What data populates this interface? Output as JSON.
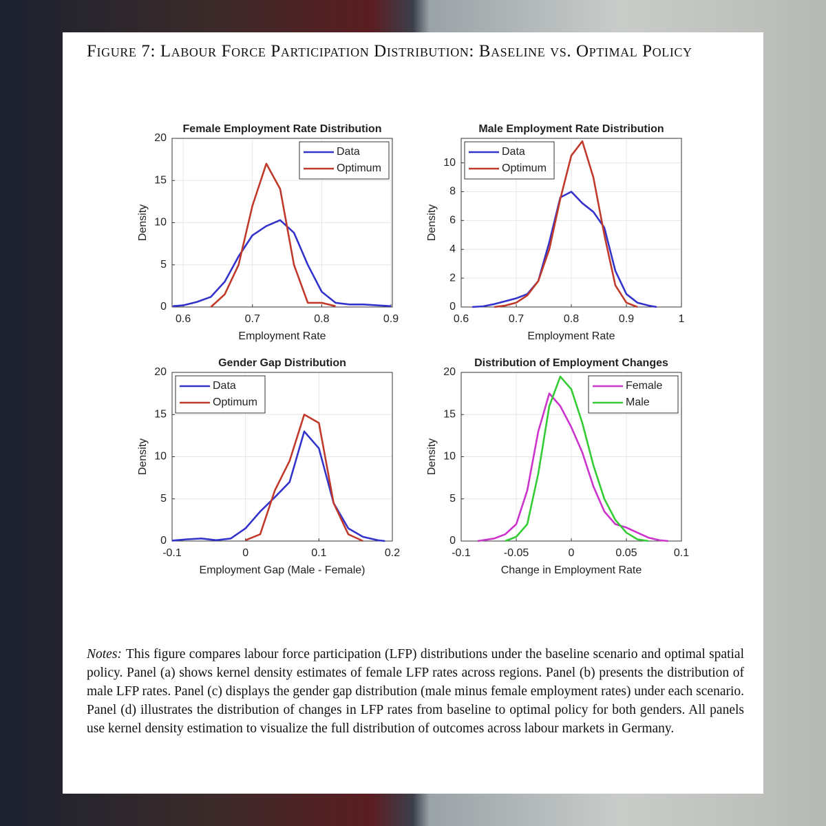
{
  "figure": {
    "label": "Figure 7:",
    "title": "Labour Force Participation Distribution: Baseline vs. Optimal Policy"
  },
  "notes": {
    "label": "Notes:",
    "text": "This figure compares labour force participation (LFP) distributions under the baseline scenario and optimal spatial policy. Panel (a) shows kernel density estimates of female LFP rates across regions. Panel (b) presents the distribution of male LFP rates. Panel (c) displays the gender gap distribution (male minus female employment rates) under each scenario. Panel (d) illustrates the distribution of changes in LFP rates from baseline to optimal policy for both genders. All panels use kernel density estimation to visualize the full distribution of outcomes across labour markets in Germany."
  },
  "chart_data": [
    {
      "type": "line",
      "title": "Female Employment Rate Distribution",
      "xlabel": "Employment Rate",
      "ylabel": "Density",
      "x": [
        0.585,
        0.6,
        0.62,
        0.64,
        0.66,
        0.68,
        0.7,
        0.72,
        0.74,
        0.76,
        0.78,
        0.8,
        0.82,
        0.84,
        0.86,
        0.88,
        0.9
      ],
      "series": [
        {
          "name": "Data",
          "color": "#3333cc",
          "values": [
            0.1,
            0.2,
            0.6,
            1.2,
            3,
            6,
            8.5,
            9.6,
            10.3,
            8.8,
            5,
            1.8,
            0.5,
            0.3,
            0.3,
            0.2,
            0.1
          ]
        },
        {
          "name": "Optimum",
          "color": "#c0392b",
          "values": [
            null,
            null,
            null,
            0,
            1.5,
            5,
            12,
            17,
            14,
            5,
            0.5,
            0.5,
            0.1,
            null,
            null,
            null,
            null
          ]
        }
      ],
      "xlim": [
        0.584,
        0.902
      ],
      "ylim": [
        0,
        20
      ],
      "xticks": [
        0.6,
        0.7,
        0.8,
        0.9
      ],
      "yticks": [
        0,
        5,
        10,
        15,
        20
      ],
      "grid": true,
      "legend": "upper-right"
    },
    {
      "type": "line",
      "title": "Male Employment Rate Distribution",
      "xlabel": "Employment Rate",
      "ylabel": "Density",
      "x": [
        0.62,
        0.64,
        0.66,
        0.68,
        0.7,
        0.72,
        0.74,
        0.76,
        0.78,
        0.8,
        0.82,
        0.84,
        0.86,
        0.88,
        0.9,
        0.92,
        0.94,
        0.955
      ],
      "series": [
        {
          "name": "Data",
          "color": "#3333cc",
          "values": [
            0,
            0.05,
            0.2,
            0.4,
            0.6,
            0.9,
            1.8,
            4.5,
            7.6,
            8,
            7.2,
            6.6,
            5.5,
            2.5,
            0.9,
            0.3,
            0.1,
            0
          ]
        },
        {
          "name": "Optimum",
          "color": "#c0392b",
          "values": [
            null,
            null,
            0,
            0.1,
            0.3,
            0.8,
            1.8,
            4,
            7.5,
            10.5,
            11.5,
            9,
            5,
            1.5,
            0.3,
            0,
            null,
            null
          ]
        }
      ],
      "xlim": [
        0.6,
        1
      ],
      "ylim": [
        0,
        11.7
      ],
      "xticks": [
        0.6,
        0.7,
        0.8,
        0.9,
        1
      ],
      "yticks": [
        0,
        2,
        4,
        6,
        8,
        10
      ],
      "grid": true,
      "legend": "upper-left"
    },
    {
      "type": "line",
      "title": "Gender Gap Distribution",
      "xlabel": "Employment Gap (Male - Female)",
      "ylabel": "Density",
      "x": [
        -0.1,
        -0.08,
        -0.06,
        -0.04,
        -0.02,
        0,
        0.02,
        0.04,
        0.06,
        0.08,
        0.1,
        0.12,
        0.14,
        0.16,
        0.18,
        0.19
      ],
      "series": [
        {
          "name": "Data",
          "color": "#3333cc",
          "values": [
            0.05,
            0.2,
            0.3,
            0.1,
            0.3,
            1.5,
            3.5,
            5.2,
            7,
            13,
            11,
            4.5,
            1.5,
            0.5,
            0.1,
            0
          ]
        },
        {
          "name": "Optimum",
          "color": "#c0392b",
          "values": [
            null,
            null,
            null,
            null,
            null,
            0.1,
            0.8,
            6,
            9.5,
            15,
            14,
            4.5,
            0.8,
            0,
            null,
            null
          ]
        }
      ],
      "xlim": [
        -0.1,
        0.2
      ],
      "ylim": [
        0,
        20
      ],
      "xticks": [
        -0.1,
        0,
        0.1,
        0.2
      ],
      "yticks": [
        0,
        5,
        10,
        15,
        20
      ],
      "grid": true,
      "legend": "upper-left"
    },
    {
      "type": "line",
      "title": "Distribution of Employment Changes",
      "xlabel": "Change in Employment Rate",
      "ylabel": "Density",
      "x": [
        -0.085,
        -0.07,
        -0.06,
        -0.05,
        -0.04,
        -0.03,
        -0.02,
        -0.01,
        0,
        0.01,
        0.02,
        0.03,
        0.04,
        0.05,
        0.06,
        0.07,
        0.08,
        0.088
      ],
      "series": [
        {
          "name": "Female",
          "color": "#cc33cc",
          "values": [
            0,
            0.3,
            0.8,
            2,
            6,
            13,
            17.5,
            16,
            13.5,
            10.5,
            6.5,
            3.5,
            2,
            1.6,
            1,
            0.4,
            0.1,
            0
          ]
        },
        {
          "name": "Male",
          "color": "#33cc33",
          "values": [
            null,
            null,
            0,
            0.5,
            2,
            8,
            16,
            19.5,
            18,
            14,
            9,
            5,
            2.5,
            1,
            0.2,
            0,
            null,
            null
          ]
        }
      ],
      "xlim": [
        -0.1,
        0.1
      ],
      "ylim": [
        0,
        20
      ],
      "xticks": [
        -0.1,
        -0.05,
        0,
        0.05,
        0.1
      ],
      "yticks": [
        0,
        5,
        10,
        15,
        20
      ],
      "grid": true,
      "legend": "upper-right"
    }
  ]
}
